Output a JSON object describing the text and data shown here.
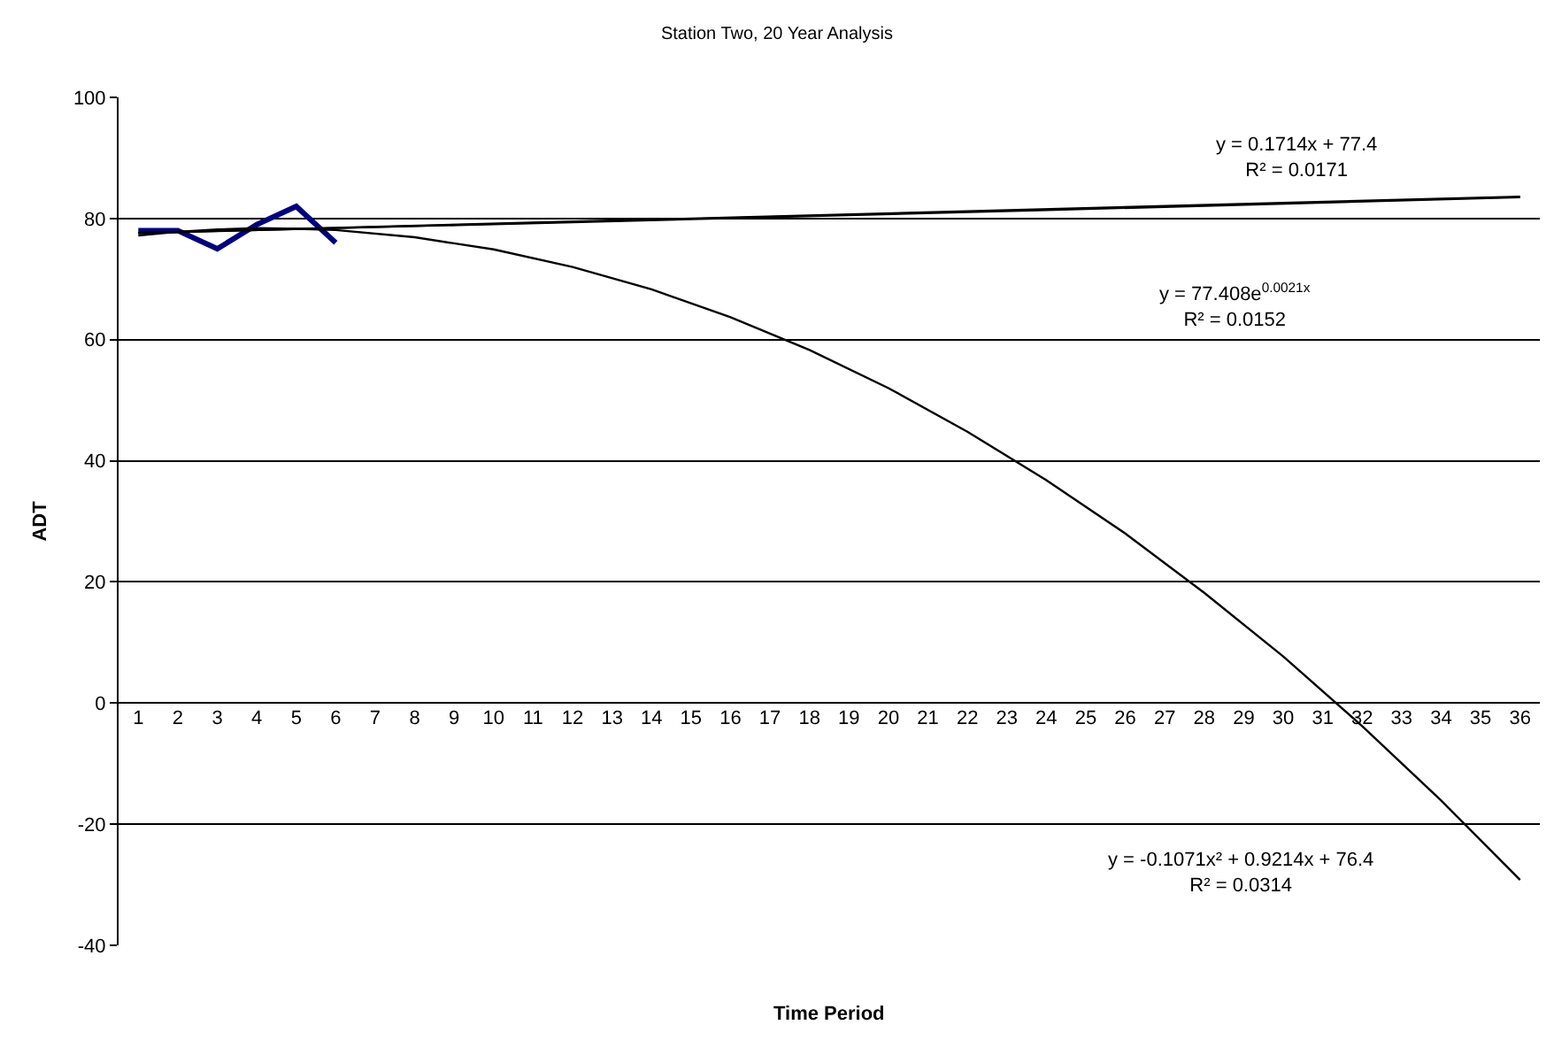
{
  "chart_data": {
    "type": "line",
    "title": "Station Two, 20 Year Analysis",
    "xlabel": "Time Period",
    "ylabel": "ADT",
    "xticks": [
      1,
      2,
      3,
      4,
      5,
      6,
      7,
      8,
      9,
      10,
      11,
      12,
      13,
      14,
      15,
      16,
      17,
      18,
      19,
      20,
      21,
      22,
      23,
      24,
      25,
      26,
      27,
      28,
      29,
      30,
      31,
      32,
      33,
      34,
      35,
      36
    ],
    "xlim": [
      0.5,
      36.5
    ],
    "ylim": [
      -40,
      100
    ],
    "yticks": [
      -40,
      -20,
      0,
      20,
      40,
      60,
      80,
      100
    ],
    "grid": "y",
    "marker": "none",
    "line_style": "solid",
    "series": [
      {
        "color": "#000080",
        "x": [
          1,
          2,
          3,
          4,
          5,
          6
        ],
        "values": [
          78,
          78,
          75,
          79,
          82,
          76
        ]
      },
      {
        "color": "#000000",
        "x": [
          1,
          36
        ],
        "values": [
          77.6,
          83.6
        ]
      },
      {
        "color": "#000000",
        "x": [
          1,
          12,
          24,
          36
        ],
        "values": [
          77.6,
          79.4,
          81.4,
          83.5
        ]
      },
      {
        "color": "#000000",
        "x": [
          1,
          2,
          3,
          4,
          5,
          6,
          8,
          10,
          12,
          14,
          16,
          18,
          20,
          22,
          24,
          26,
          28,
          30,
          32,
          34,
          36
        ],
        "values": [
          77.2,
          77.8,
          78.2,
          78.4,
          78.3,
          78.1,
          76.9,
          74.9,
          72.0,
          68.3,
          63.7,
          58.3,
          52.0,
          44.8,
          36.8,
          28.0,
          18.2,
          7.7,
          -3.8,
          -16.1,
          -29.2
        ]
      }
    ],
    "annotations": [
      "y = 0.1714x + 77.4\nR² = 0.0171",
      "y = 77.408e$^{0.0021x}$\nR² = 0.0152",
      "y = -0.1071x² + 0.9214x + 76.4\nR² = 0.0314"
    ]
  }
}
